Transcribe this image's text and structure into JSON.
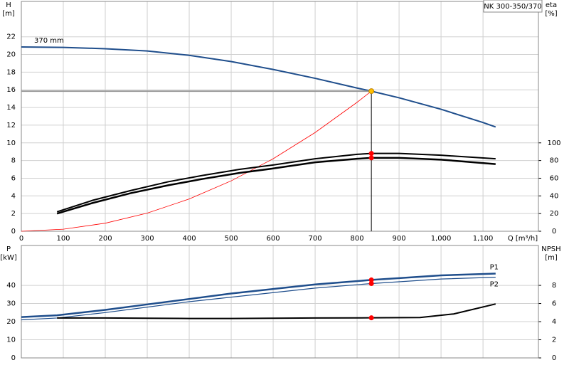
{
  "chart_data": [
    {
      "type": "line",
      "title": "NK 300-350/370",
      "ylabel": [
        "H",
        "[m]"
      ],
      "y2label": [
        "eta",
        "[%]"
      ],
      "xlabel": "Q [m³/h]",
      "xlim": [
        0,
        1232
      ],
      "xticks": [
        0,
        100,
        200,
        300,
        400,
        500,
        600,
        700,
        800,
        900,
        {
          "value": 1000,
          "label": "1,000"
        },
        {
          "value": 1100,
          "label": "1,100"
        }
      ],
      "ylim": [
        0,
        26
      ],
      "yticks": [
        0,
        2,
        4,
        6,
        8,
        10,
        12,
        14,
        16,
        18,
        20,
        22
      ],
      "y2lim": [
        0,
        260
      ],
      "y2ticks": [
        0,
        20,
        40,
        60,
        80,
        100
      ],
      "grid": true,
      "operating_point_x": 834,
      "series": [
        {
          "name": "370 mm",
          "color": "#1f4e8c",
          "width": 2,
          "duty_marker": "#ffc000",
          "x": [
            0,
            100,
            200,
            300,
            400,
            500,
            600,
            700,
            800,
            834,
            900,
            1000,
            1100,
            1130
          ],
          "values": [
            20.85,
            20.8,
            20.65,
            20.4,
            19.9,
            19.2,
            18.3,
            17.3,
            16.2,
            15.85,
            15.1,
            13.8,
            12.3,
            11.8
          ]
        },
        {
          "color": "#ff0000",
          "width": 0.8,
          "x": [
            0,
            100,
            200,
            300,
            400,
            500,
            600,
            700,
            800,
            834
          ],
          "values": [
            0,
            0.23,
            0.91,
            2.05,
            3.65,
            5.7,
            8.2,
            11.17,
            14.59,
            15.85
          ]
        },
        {
          "color": "#000000",
          "width": 2,
          "axis": "y2",
          "duty_marker": "#ff0000",
          "x": [
            85,
            170,
            260,
            350,
            430,
            520,
            600,
            700,
            800,
            834,
            900,
            1000,
            1130
          ],
          "values": [
            22,
            35,
            46,
            56,
            63,
            70,
            75,
            82,
            87,
            88,
            88,
            86,
            82
          ]
        },
        {
          "color": "#000000",
          "width": 2.5,
          "axis": "y2",
          "duty_marker": "#ff0000",
          "x": [
            85,
            170,
            260,
            350,
            430,
            520,
            600,
            700,
            800,
            834,
            900,
            1000,
            1130
          ],
          "values": [
            20,
            32,
            43,
            52,
            59,
            66,
            71,
            78,
            82,
            83,
            83,
            81,
            76
          ]
        }
      ]
    },
    {
      "type": "line",
      "ylabel": [
        "P",
        "[kW]"
      ],
      "y2label": [
        "NPSH",
        "[m]"
      ],
      "xlim": [
        0,
        1232
      ],
      "xticks": [
        0,
        100,
        200,
        300,
        400,
        500,
        600,
        700,
        800,
        900,
        1000,
        1100
      ],
      "ylim": [
        0,
        62
      ],
      "yticks": [
        0,
        10,
        20,
        30,
        40
      ],
      "y2lim": [
        0,
        12.4
      ],
      "y2ticks": [
        0,
        2,
        4,
        6,
        8
      ],
      "grid": true,
      "operating_point_x": 834,
      "series": [
        {
          "name": "P1",
          "color": "#1f4e8c",
          "width": 2.5,
          "duty_marker": "#ff0000",
          "x": [
            0,
            85,
            200,
            300,
            400,
            500,
            600,
            700,
            834,
            900,
            1000,
            1130
          ],
          "values": [
            22.5,
            23.5,
            26.5,
            29.5,
            32.5,
            35.5,
            38,
            40.5,
            43,
            44,
            45.5,
            46.5
          ]
        },
        {
          "name": "P2",
          "color": "#1f4e8c",
          "width": 1.2,
          "duty_marker": "#ff0000",
          "x": [
            0,
            85,
            200,
            300,
            400,
            500,
            600,
            700,
            834,
            900,
            1000,
            1130
          ],
          "values": [
            21,
            22,
            25,
            28,
            31,
            33.5,
            36,
            38.5,
            41,
            42,
            43.5,
            44.5
          ]
        },
        {
          "color": "#000000",
          "width": 2,
          "axis": "y2",
          "duty_marker": "#ff0000",
          "x": [
            85,
            200,
            300,
            400,
            500,
            600,
            700,
            834,
            950,
            1030,
            1130
          ],
          "values": [
            4.4,
            4.4,
            4.38,
            4.35,
            4.35,
            4.38,
            4.4,
            4.42,
            4.45,
            4.85,
            5.95
          ]
        }
      ]
    }
  ]
}
